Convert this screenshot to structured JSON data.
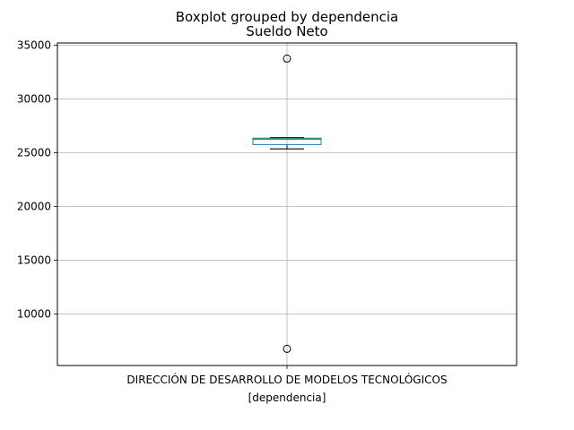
{
  "chart_data": {
    "type": "boxplot",
    "suptitle": "Boxplot grouped by dependencia",
    "title": "Sueldo Neto",
    "xlabel": "[dependencia]",
    "ylabel": "",
    "categories": [
      "DIRECCIÓN DE DESARROLLO DE MODELOS TECNOLÓGICOS"
    ],
    "yticks": [
      10000,
      15000,
      20000,
      25000,
      30000,
      35000
    ],
    "ytick_labels": [
      "10000",
      "15000",
      "20000",
      "25000",
      "30000",
      "35000"
    ],
    "ylim": [
      5200,
      35200
    ],
    "grid": true,
    "boxes": [
      {
        "category": "DIRECCIÓN DE DESARROLLO DE MODELOS TECNOLÓGICOS",
        "whisker_low": 25350,
        "q1": 25750,
        "median": 26250,
        "q3": 26350,
        "whisker_high": 26400,
        "outliers": [
          33750,
          6750
        ]
      }
    ],
    "colors": {
      "box": "#1f77b4",
      "median": "#2ca02c",
      "whisker": "#000000",
      "grid": "#b0b0b0"
    }
  }
}
